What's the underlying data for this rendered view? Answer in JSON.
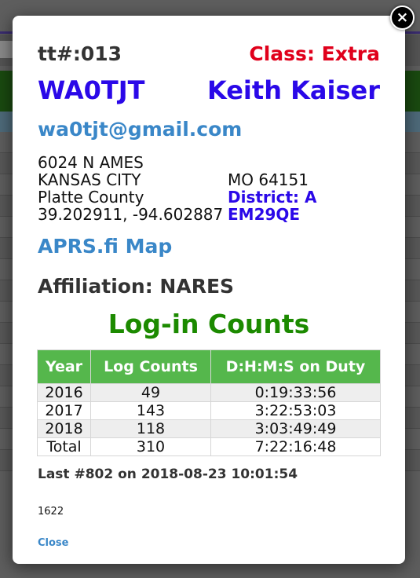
{
  "modal": {
    "ticket": "tt#:013",
    "license_class": "Class: Extra",
    "callsign": "WA0TJT",
    "name": "Keith Kaiser",
    "email": "wa0tjt@gmail.com",
    "address": {
      "street": "6024 N AMES",
      "city": "KANSAS CITY",
      "state_zip": "MO 64151",
      "county": "Platte County",
      "district": "District: A",
      "coordinates": "39.202911, -94.602887",
      "grid": "EM29QE"
    },
    "aprs_link": "APRS.fi Map",
    "affiliation": "Affiliation: NARES",
    "counts_title": "Log-in Counts",
    "table": {
      "headers": [
        "Year",
        "Log Counts",
        "D:H:M:S on Duty"
      ],
      "rows": [
        [
          "2016",
          "49",
          "0:19:33:56"
        ],
        [
          "2017",
          "143",
          "3:22:53:03"
        ],
        [
          "2018",
          "118",
          "3:03:49:49"
        ],
        [
          "Total",
          "310",
          "7:22:16:48"
        ]
      ]
    },
    "last_entry": "Last #802 on 2018-08-23 10:01:54",
    "record_id": "1622",
    "close_label": "Close",
    "close_x": "×"
  }
}
